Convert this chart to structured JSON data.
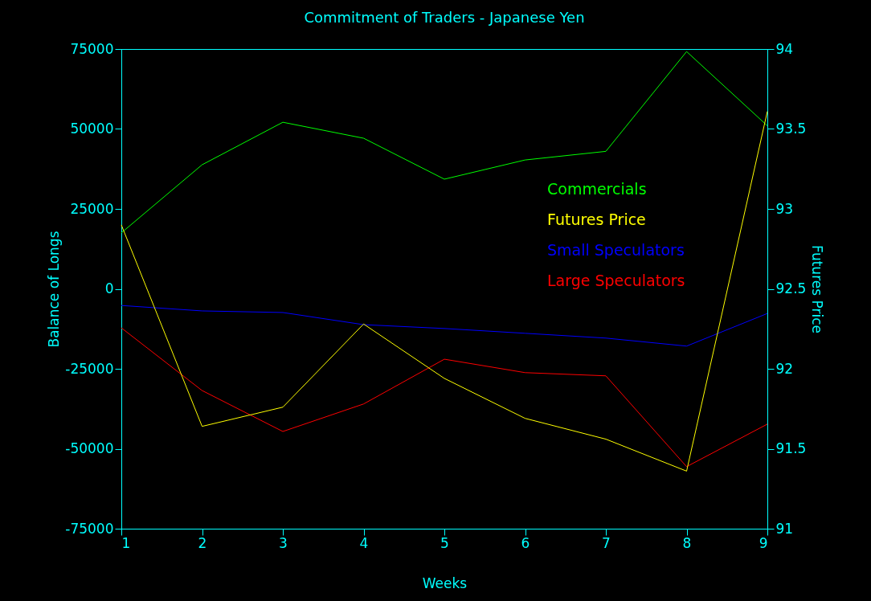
{
  "chart_data": {
    "type": "line",
    "title": "Commitment of Traders - Japanese Yen",
    "xlabel": "Weeks",
    "ylabel": "Balance of Longs",
    "y2label": "Futures Price",
    "x": [
      1,
      2,
      3,
      4,
      5,
      6,
      7,
      8,
      9
    ],
    "series": [
      {
        "name": "Commercials",
        "color": "#00ff00",
        "values": [
          17500,
          38800,
          52100,
          47100,
          34300,
          40300,
          43000,
          74200,
          51000
        ]
      },
      {
        "name": "Futures Price",
        "color": "#ffff00",
        "axis": "y2",
        "values": [
          92.9,
          91.64,
          91.76,
          92.28,
          91.94,
          91.69,
          91.56,
          91.36,
          93.61
        ]
      },
      {
        "name": "Small Speculators",
        "color": "#0000ff",
        "values": [
          -5200,
          -6900,
          -7400,
          -11200,
          -12400,
          -13900,
          -15400,
          -17900,
          -7700
        ]
      },
      {
        "name": "Large Speculators",
        "color": "#ff0000",
        "values": [
          -12200,
          -31800,
          -44600,
          -36000,
          -22000,
          -26200,
          -27200,
          -55600,
          -42300
        ]
      }
    ],
    "xlim": [
      1,
      9
    ],
    "xticks": [
      1,
      2,
      3,
      4,
      5,
      6,
      7,
      8,
      9
    ],
    "ylim": [
      -75000,
      75000
    ],
    "yticks": [
      -75000,
      -50000,
      -25000,
      0,
      25000,
      50000,
      75000
    ],
    "y2lim": [
      91,
      94
    ],
    "y2ticks": [
      91,
      91.5,
      92,
      92.5,
      93,
      93.5,
      94
    ],
    "grid": false,
    "legend": "top right",
    "marker": "none",
    "line_style": "solid"
  }
}
